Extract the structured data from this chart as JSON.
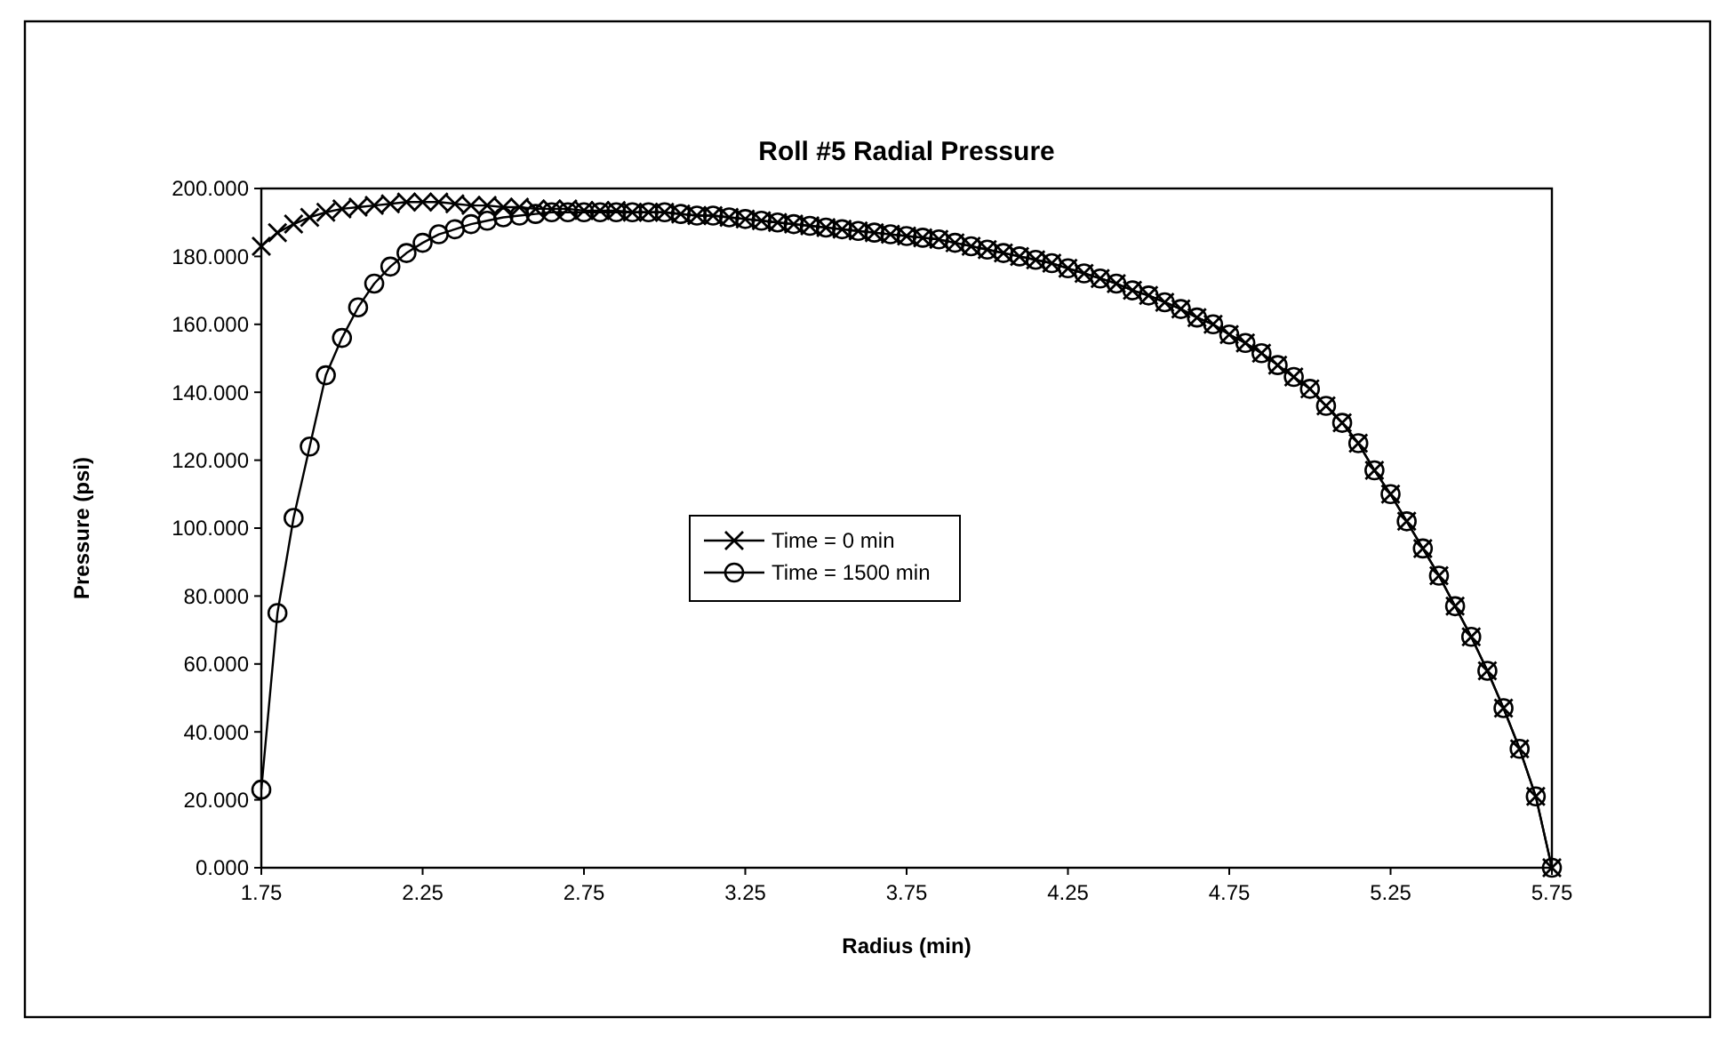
{
  "chart_data": {
    "type": "line",
    "title": "Roll #5 Radial Pressure",
    "xlabel": "Radius (min)",
    "ylabel": "Pressure (psi)",
    "x": [
      1.75,
      1.8,
      1.85,
      1.9,
      1.95,
      2.0,
      2.05,
      2.1,
      2.15,
      2.2,
      2.25,
      2.3,
      2.35,
      2.4,
      2.45,
      2.5,
      2.55,
      2.6,
      2.65,
      2.7,
      2.75,
      2.8,
      2.85,
      2.9,
      2.95,
      3.0,
      3.05,
      3.1,
      3.15,
      3.2,
      3.25,
      3.3,
      3.35,
      3.4,
      3.45,
      3.5,
      3.55,
      3.6,
      3.65,
      3.7,
      3.75,
      3.8,
      3.85,
      3.9,
      3.95,
      4.0,
      4.05,
      4.1,
      4.15,
      4.2,
      4.25,
      4.3,
      4.35,
      4.4,
      4.45,
      4.5,
      4.55,
      4.6,
      4.65,
      4.7,
      4.75,
      4.8,
      4.85,
      4.9,
      4.95,
      5.0,
      5.05,
      5.1,
      5.15,
      5.2,
      5.25,
      5.3,
      5.35,
      5.4,
      5.45,
      5.5,
      5.55,
      5.6,
      5.65,
      5.7,
      5.75
    ],
    "series": [
      {
        "name": "Time = 0 min",
        "color": "#000000",
        "marker": "cross",
        "values": [
          183,
          187,
          189.5,
          191.5,
          193,
          194,
          194.5,
          195,
          195.5,
          196,
          196,
          196,
          195.5,
          195,
          195,
          194.5,
          194.5,
          194,
          194,
          194,
          193.5,
          193.5,
          193.5,
          193,
          193,
          193,
          192.5,
          192,
          192,
          191.5,
          191,
          190.5,
          190,
          189.5,
          189,
          188.5,
          188,
          187.5,
          187,
          186.5,
          186,
          185.5,
          185,
          184,
          183,
          182,
          181,
          180,
          179,
          178,
          176.5,
          175,
          173.5,
          172,
          170,
          168.5,
          166.5,
          164.5,
          162,
          160,
          157,
          154.5,
          151.5,
          148,
          144.5,
          141,
          136,
          131,
          125,
          117,
          110,
          102,
          94,
          86,
          77,
          68,
          58,
          47,
          35,
          21,
          0
        ]
      },
      {
        "name": "Time = 1500 min",
        "color": "#000000",
        "marker": "circle",
        "values": [
          23,
          75,
          103,
          124,
          145,
          156,
          165,
          172,
          177,
          181,
          184,
          186.5,
          188,
          189.5,
          190.5,
          191.5,
          192,
          192.5,
          193,
          193,
          193,
          193,
          193,
          193,
          193,
          193,
          192.5,
          192,
          192,
          191.5,
          191,
          190.5,
          190,
          189.5,
          189,
          188.5,
          188,
          187.5,
          187,
          186.5,
          186,
          185.5,
          185,
          184,
          183,
          182,
          181,
          180,
          179,
          178,
          176.5,
          175,
          173.5,
          172,
          170,
          168.5,
          166.5,
          164.5,
          162,
          160,
          157,
          154.5,
          151.5,
          148,
          144.5,
          141,
          136,
          131,
          125,
          117,
          110,
          102,
          94,
          86,
          77,
          68,
          58,
          47,
          35,
          21,
          0
        ]
      }
    ],
    "xlim": [
      1.75,
      5.75
    ],
    "xticks": [
      1.75,
      2.25,
      2.75,
      3.25,
      3.75,
      4.25,
      4.75,
      5.25,
      5.75
    ],
    "ylim": [
      0,
      200
    ],
    "yticks": [
      {
        "value": 0,
        "label": "0.000"
      },
      {
        "value": 20,
        "label": "20.000"
      },
      {
        "value": 40,
        "label": "40.000"
      },
      {
        "value": 60,
        "label": "60.000"
      },
      {
        "value": 80,
        "label": "80.000"
      },
      {
        "value": 100,
        "label": "100.000"
      },
      {
        "value": 120,
        "label": "120.000"
      },
      {
        "value": 140,
        "label": "140.000"
      },
      {
        "value": 160,
        "label": "160.000"
      },
      {
        "value": 180,
        "label": "180.000"
      },
      {
        "value": 200,
        "label": "200.000"
      }
    ],
    "grid": false,
    "legend": "center",
    "line_style": "solid"
  }
}
